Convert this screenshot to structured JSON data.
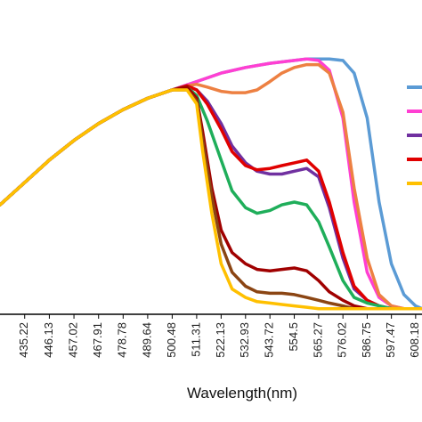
{
  "chart_data": {
    "type": "line",
    "title": "",
    "xlabel": "Wavelength(nm)",
    "ylabel": "",
    "x_tick_labels": [
      "435.22",
      "446.13",
      "457.02",
      "467.91",
      "478.78",
      "489.64",
      "500.48",
      "511.31",
      "522.13",
      "532.93",
      "543.72",
      "554.5",
      "565.27",
      "576.02",
      "586.75",
      "597.47",
      "608.18"
    ],
    "xlim": [
      424.3,
      611.0
    ],
    "ylim": [
      0,
      1.0
    ],
    "grid": false,
    "legend": "right (entries cropped, names not visible)",
    "series": [
      {
        "color": "#5b9bd5",
        "x": [
          424.3,
          435.22,
          446.13,
          457.02,
          467.91,
          478.78,
          489.64,
          500.48,
          511.31,
          522.13,
          532.93,
          543.72,
          554.5,
          560.0,
          565.27,
          570.0,
          576.02,
          581.0,
          586.75,
          592.0,
          597.47,
          603.0,
          608.18,
          611.0
        ],
        "y": [
          0.39,
          0.47,
          0.55,
          0.62,
          0.68,
          0.73,
          0.77,
          0.8,
          0.83,
          0.86,
          0.88,
          0.895,
          0.905,
          0.91,
          0.91,
          0.91,
          0.905,
          0.86,
          0.7,
          0.4,
          0.18,
          0.07,
          0.03,
          0.02
        ]
      },
      {
        "color": "#ff3fd2",
        "x": [
          424.3,
          435.22,
          446.13,
          457.02,
          467.91,
          478.78,
          489.64,
          500.48,
          511.31,
          522.13,
          532.93,
          543.72,
          554.5,
          560.0,
          565.27,
          570.0,
          576.02,
          581.0,
          586.75,
          592.0,
          597.47,
          603.0,
          608.18,
          611.0
        ],
        "y": [
          0.39,
          0.47,
          0.55,
          0.62,
          0.68,
          0.73,
          0.77,
          0.8,
          0.83,
          0.86,
          0.88,
          0.895,
          0.905,
          0.91,
          0.905,
          0.87,
          0.7,
          0.4,
          0.15,
          0.06,
          0.03,
          0.02,
          0.02,
          0.02
        ]
      },
      {
        "color": "#ed8042",
        "x": [
          424.3,
          435.22,
          446.13,
          457.02,
          467.91,
          478.78,
          489.64,
          500.48,
          507.0,
          511.31,
          516.0,
          522.13,
          527.0,
          532.93,
          538.0,
          543.72,
          549.0,
          554.5,
          560.0,
          565.27,
          570.0,
          576.02,
          581.0,
          586.75,
          592.0,
          597.47,
          603.0,
          608.18,
          611.0
        ],
        "y": [
          0.39,
          0.47,
          0.55,
          0.62,
          0.68,
          0.73,
          0.77,
          0.8,
          0.815,
          0.82,
          0.81,
          0.795,
          0.79,
          0.79,
          0.8,
          0.83,
          0.86,
          0.88,
          0.89,
          0.89,
          0.86,
          0.72,
          0.45,
          0.2,
          0.07,
          0.03,
          0.02,
          0.02,
          0.02
        ]
      },
      {
        "color": "#7030a0",
        "x": [
          424.3,
          435.22,
          446.13,
          457.02,
          467.91,
          478.78,
          489.64,
          500.48,
          507.0,
          511.31,
          516.0,
          522.13,
          527.0,
          532.93,
          538.0,
          543.72,
          549.0,
          554.5,
          560.0,
          565.27,
          570.0,
          576.02,
          581.0,
          586.75,
          592.0,
          597.47,
          603.0,
          608.18,
          611.0
        ],
        "y": [
          0.39,
          0.47,
          0.55,
          0.62,
          0.68,
          0.73,
          0.77,
          0.8,
          0.815,
          0.8,
          0.76,
          0.68,
          0.6,
          0.54,
          0.51,
          0.5,
          0.5,
          0.51,
          0.52,
          0.49,
          0.38,
          0.2,
          0.09,
          0.05,
          0.03,
          0.02,
          0.02,
          0.02,
          0.02
        ]
      },
      {
        "color": "#e00000",
        "x": [
          424.3,
          435.22,
          446.13,
          457.02,
          467.91,
          478.78,
          489.64,
          500.48,
          507.0,
          511.31,
          516.0,
          522.13,
          527.0,
          532.93,
          538.0,
          543.72,
          549.0,
          554.5,
          560.0,
          565.27,
          570.0,
          576.02,
          581.0,
          586.75,
          592.0,
          597.47,
          603.0,
          608.18,
          611.0
        ],
        "y": [
          0.39,
          0.47,
          0.55,
          0.62,
          0.68,
          0.73,
          0.77,
          0.8,
          0.815,
          0.8,
          0.75,
          0.66,
          0.58,
          0.53,
          0.515,
          0.52,
          0.53,
          0.54,
          0.55,
          0.51,
          0.4,
          0.22,
          0.1,
          0.05,
          0.03,
          0.02,
          0.02,
          0.02,
          0.02
        ]
      },
      {
        "color": "#1fae5a",
        "x": [
          424.3,
          435.22,
          446.13,
          457.02,
          467.91,
          478.78,
          489.64,
          500.48,
          507.0,
          511.31,
          516.0,
          522.13,
          527.0,
          532.93,
          538.0,
          543.72,
          549.0,
          554.5,
          560.0,
          565.27,
          570.0,
          576.02,
          581.0,
          586.75,
          592.0,
          597.47,
          603.0,
          608.18,
          611.0
        ],
        "y": [
          0.39,
          0.47,
          0.55,
          0.62,
          0.68,
          0.73,
          0.77,
          0.8,
          0.81,
          0.78,
          0.69,
          0.55,
          0.44,
          0.38,
          0.36,
          0.37,
          0.39,
          0.4,
          0.39,
          0.33,
          0.24,
          0.12,
          0.06,
          0.04,
          0.03,
          0.02,
          0.02,
          0.02,
          0.02
        ]
      },
      {
        "color": "#a00000",
        "x": [
          424.3,
          435.22,
          446.13,
          457.02,
          467.91,
          478.78,
          489.64,
          500.48,
          507.0,
          511.31,
          514.0,
          518.0,
          522.13,
          527.0,
          532.93,
          538.0,
          543.72,
          549.0,
          554.5,
          560.0,
          565.27,
          570.0,
          576.02,
          581.0,
          586.75,
          592.0,
          597.47,
          603.0,
          608.18,
          611.0
        ],
        "y": [
          0.39,
          0.47,
          0.55,
          0.62,
          0.68,
          0.73,
          0.77,
          0.8,
          0.81,
          0.77,
          0.65,
          0.45,
          0.3,
          0.22,
          0.18,
          0.16,
          0.155,
          0.16,
          0.165,
          0.155,
          0.12,
          0.08,
          0.05,
          0.03,
          0.02,
          0.02,
          0.02,
          0.02,
          0.02,
          0.02
        ]
      },
      {
        "color": "#8b4513",
        "x": [
          424.3,
          435.22,
          446.13,
          457.02,
          467.91,
          478.78,
          489.64,
          500.48,
          507.0,
          511.31,
          514.0,
          518.0,
          522.13,
          527.0,
          532.93,
          538.0,
          543.72,
          549.0,
          554.5,
          560.0,
          565.27,
          570.0,
          576.02,
          581.0,
          586.75,
          592.0,
          597.47,
          603.0,
          608.18,
          611.0
        ],
        "y": [
          0.39,
          0.47,
          0.55,
          0.62,
          0.68,
          0.73,
          0.77,
          0.8,
          0.8,
          0.76,
          0.62,
          0.42,
          0.25,
          0.15,
          0.1,
          0.08,
          0.075,
          0.075,
          0.07,
          0.06,
          0.05,
          0.04,
          0.03,
          0.02,
          0.02,
          0.02,
          0.02,
          0.02,
          0.02,
          0.02
        ]
      },
      {
        "color": "#ffc000",
        "x": [
          424.3,
          435.22,
          446.13,
          457.02,
          467.91,
          478.78,
          489.64,
          500.48,
          507.0,
          511.31,
          514.0,
          518.0,
          522.13,
          527.0,
          532.93,
          538.0,
          543.72,
          549.0,
          554.5,
          560.0,
          565.27,
          570.0,
          576.02,
          581.0,
          586.75,
          592.0,
          597.47,
          603.0,
          608.18,
          611.0
        ],
        "y": [
          0.39,
          0.47,
          0.55,
          0.62,
          0.68,
          0.73,
          0.77,
          0.8,
          0.8,
          0.75,
          0.58,
          0.36,
          0.18,
          0.09,
          0.06,
          0.045,
          0.04,
          0.035,
          0.03,
          0.025,
          0.02,
          0.02,
          0.02,
          0.02,
          0.02,
          0.02,
          0.02,
          0.02,
          0.02,
          0.02
        ]
      }
    ]
  }
}
